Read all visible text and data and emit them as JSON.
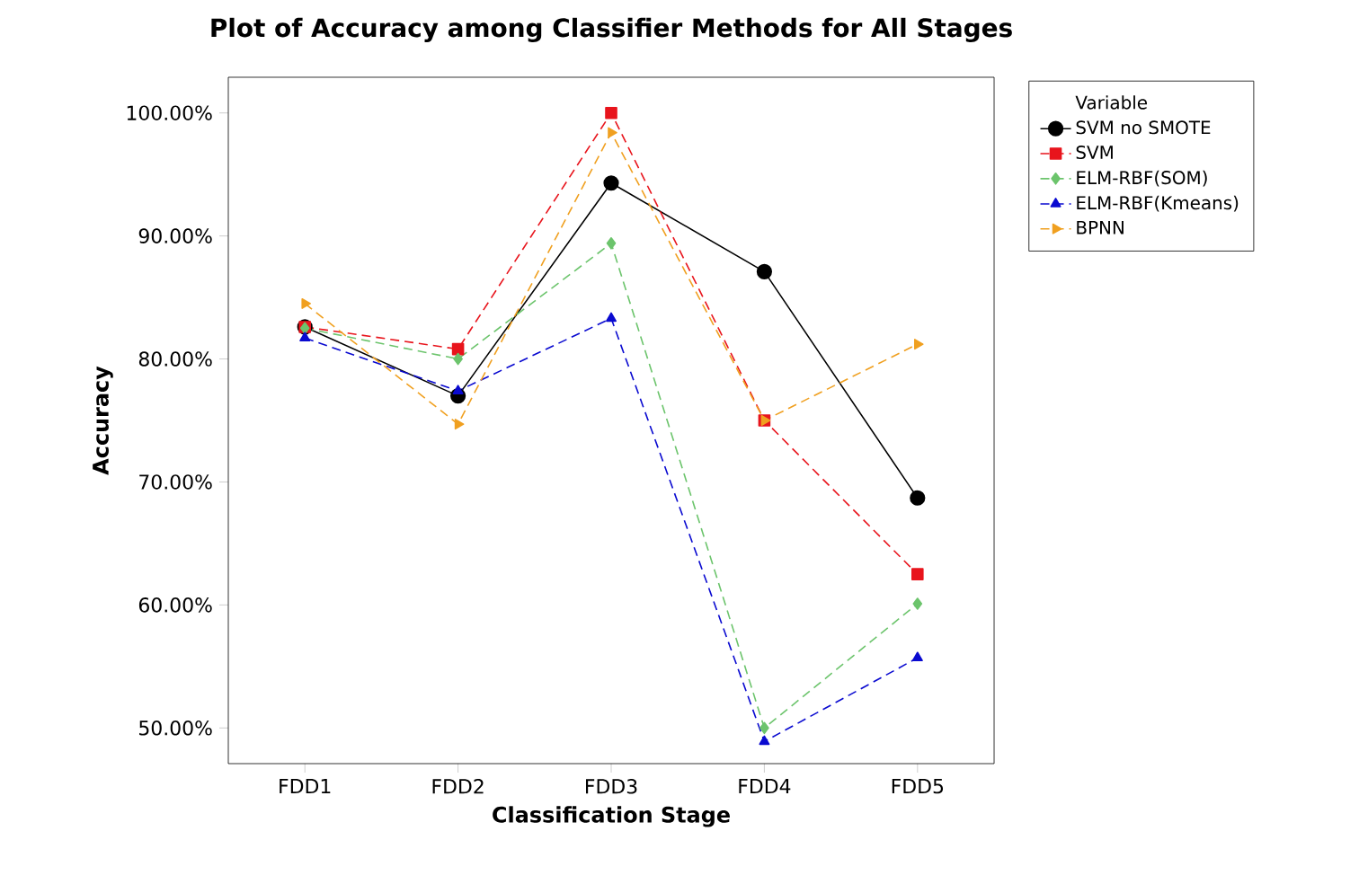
{
  "chart_data": {
    "type": "line",
    "title": "Plot of Accuracy among Classifier Methods for All Stages",
    "xlabel": "Classification Stage",
    "ylabel": "Accuracy",
    "legend_title": "Variable",
    "legend": "right",
    "categories": [
      "FDD1",
      "FDD2",
      "FDD3",
      "FDD4",
      "FDD5"
    ],
    "ylim": [
      47.1,
      102.9
    ],
    "yticks": [
      {
        "value": 50,
        "label": "50.00%"
      },
      {
        "value": 60,
        "label": "60.00%"
      },
      {
        "value": 70,
        "label": "70.00%"
      },
      {
        "value": 80,
        "label": "80.00%"
      },
      {
        "value": 90,
        "label": "90.00%"
      },
      {
        "value": 100,
        "label": "100.00%"
      }
    ],
    "series": [
      {
        "name": "SVM no SMOTE",
        "color": "#000000",
        "marker": "circle",
        "line_style": "solid",
        "values": [
          82.6,
          77.0,
          94.3,
          87.1,
          68.7
        ]
      },
      {
        "name": "SVM",
        "color": "#e8141c",
        "marker": "square",
        "line_style": "dashed",
        "values": [
          82.6,
          80.8,
          100.0,
          75.0,
          62.5
        ]
      },
      {
        "name": "ELM-RBF(SOM)",
        "color": "#6cc46c",
        "marker": "diamond",
        "line_style": "dashed",
        "values": [
          82.5,
          80.0,
          89.4,
          50.0,
          60.1
        ]
      },
      {
        "name": "ELM-RBF(Kmeans)",
        "color": "#0a0ad0",
        "marker": "triangle",
        "line_style": "dashed",
        "values": [
          81.7,
          77.4,
          83.3,
          48.9,
          55.7
        ]
      },
      {
        "name": "BPNN",
        "color": "#f0a020",
        "marker": "triangle-right",
        "line_style": "dashed",
        "values": [
          84.5,
          74.7,
          98.4,
          75.0,
          81.2
        ]
      }
    ]
  }
}
